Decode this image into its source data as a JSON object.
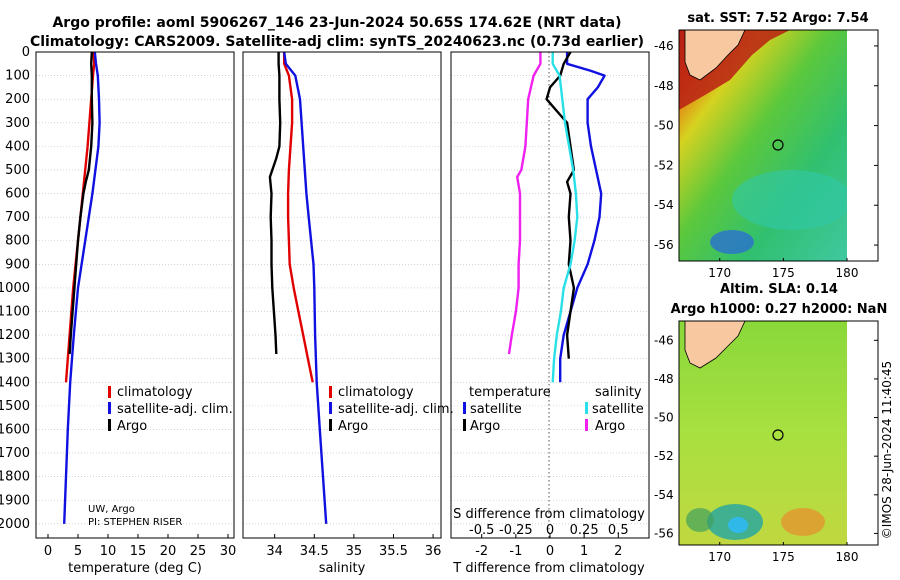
{
  "title": {
    "line1": "Argo profile: aoml 5906267_146 23-Jun-2024 50.65S 174.62E (NRT data)",
    "line2": "Climatology: CARS2009. Satellite-adj clim: synTS_20240623.nc (0.73d earlier)"
  },
  "colors": {
    "climatology": "#e00000",
    "satellite": "#1010e0",
    "argo": "#000000",
    "satellite_salt": "#28e0e8",
    "argo_salt": "#f020f0"
  },
  "depth_ticks": [
    "0",
    "100",
    "200",
    "300",
    "400",
    "500",
    "600",
    "700",
    "800",
    "900",
    "1000",
    "1100",
    "1200",
    "1300",
    "1400",
    "1500",
    "1600",
    "1700",
    "1800",
    "1900",
    "2000"
  ],
  "chart_data": [
    {
      "type": "line",
      "panel": "temperature",
      "xlabel": "temperature (deg C)",
      "ylabel": "",
      "xlim": [
        -2,
        31
      ],
      "ylim": [
        2060,
        0
      ],
      "xticks": [
        "0",
        "5",
        "10",
        "15",
        "20",
        "25",
        "30"
      ],
      "legend": [
        "climatology",
        "satellite-adj. clim.",
        "Argo"
      ],
      "note1": "UW, Argo",
      "note2": "PI: STEPHEN RISER",
      "series": [
        {
          "name": "climatology",
          "depth": [
            0,
            50,
            100,
            200,
            300,
            400,
            500,
            600,
            700,
            800,
            900,
            1000,
            1100,
            1200,
            1300,
            1400
          ],
          "values": [
            7.6,
            7.7,
            7.5,
            7.2,
            6.9,
            6.6,
            6.2,
            5.8,
            5.4,
            5.0,
            4.6,
            4.2,
            3.9,
            3.6,
            3.3,
            3.0
          ]
        },
        {
          "name": "satellite-adj. clim.",
          "depth": [
            0,
            50,
            100,
            200,
            300,
            400,
            500,
            600,
            700,
            800,
            900,
            1000,
            1200,
            1400,
            1600,
            1800,
            2000
          ],
          "values": [
            7.8,
            8.0,
            8.3,
            8.5,
            8.6,
            8.4,
            7.9,
            7.4,
            6.8,
            6.2,
            5.6,
            5.0,
            4.3,
            3.7,
            3.3,
            3.0,
            2.7
          ]
        },
        {
          "name": "Argo",
          "depth": [
            0,
            50,
            100,
            200,
            300,
            400,
            450,
            500,
            550,
            600,
            700,
            800,
            900,
            1000,
            1100,
            1200,
            1280
          ],
          "values": [
            7.3,
            7.2,
            7.3,
            7.3,
            7.4,
            7.2,
            7.0,
            6.8,
            6.3,
            5.9,
            5.4,
            5.0,
            4.7,
            4.4,
            4.1,
            3.8,
            3.6
          ]
        }
      ]
    },
    {
      "type": "line",
      "panel": "salinity",
      "xlabel": "salinity",
      "ylabel": "",
      "xlim": [
        33.6,
        36.1
      ],
      "ylim": [
        2060,
        0
      ],
      "xticks": [
        "34",
        "34.5",
        "35",
        "35.5",
        "36"
      ],
      "legend": [
        "climatology",
        "satellite-adj. clim.",
        "Argo"
      ],
      "series": [
        {
          "name": "climatology",
          "depth": [
            0,
            50,
            100,
            200,
            300,
            400,
            500,
            600,
            700,
            800,
            900,
            1000,
            1100,
            1200,
            1300,
            1400
          ],
          "values": [
            34.12,
            34.12,
            34.18,
            34.22,
            34.22,
            34.2,
            34.18,
            34.17,
            34.17,
            34.18,
            34.19,
            34.24,
            34.3,
            34.36,
            34.42,
            34.48
          ]
        },
        {
          "name": "satellite-adj. clim.",
          "depth": [
            0,
            50,
            100,
            200,
            300,
            400,
            500,
            600,
            700,
            800,
            900,
            1000,
            1200,
            1400,
            1600,
            1800,
            2000
          ],
          "values": [
            34.12,
            34.14,
            34.26,
            34.32,
            34.34,
            34.36,
            34.38,
            34.4,
            34.43,
            34.46,
            34.49,
            34.5,
            34.51,
            34.53,
            34.57,
            34.61,
            34.65
          ]
        },
        {
          "name": "Argo",
          "depth": [
            0,
            50,
            100,
            200,
            300,
            400,
            450,
            500,
            530,
            600,
            700,
            800,
            900,
            1000,
            1100,
            1200,
            1280
          ],
          "values": [
            34.05,
            34.05,
            34.06,
            34.06,
            34.07,
            34.06,
            34.02,
            33.97,
            33.94,
            33.96,
            33.95,
            33.96,
            33.96,
            33.97,
            33.99,
            34.01,
            34.02
          ]
        }
      ]
    },
    {
      "type": "line",
      "panel": "difference",
      "xlabel": "T difference from climatology",
      "xlabel_top": "S difference from climatology",
      "xlim": [
        -2.9,
        2.9
      ],
      "ylim": [
        2060,
        0
      ],
      "xticks": [
        "-2",
        "-1",
        "0",
        "1",
        "2"
      ],
      "s_ticks": [
        "-0.5",
        "-0.25",
        "0",
        "0.25",
        "0.5"
      ],
      "legend": {
        "t_header": "temperature",
        "s_header": "salinity",
        "t_sat": "satellite",
        "t_argo": "Argo",
        "s_sat": "satellite",
        "s_argo": "Argo"
      },
      "series": [
        {
          "name": "T satellite",
          "depth": [
            0,
            50,
            80,
            100,
            150,
            200,
            300,
            400,
            500,
            600,
            700,
            800,
            900,
            1000,
            1100,
            1200,
            1300,
            1400
          ],
          "values": [
            0.5,
            0.5,
            1.2,
            1.6,
            1.4,
            1.1,
            1.1,
            1.2,
            1.35,
            1.5,
            1.45,
            1.3,
            1.1,
            0.8,
            0.6,
            0.4,
            0.3,
            0.3
          ]
        },
        {
          "name": "T Argo",
          "depth": [
            0,
            50,
            100,
            150,
            200,
            250,
            300,
            400,
            500,
            550,
            600,
            700,
            800,
            900,
            1000,
            1100,
            1200,
            1300
          ],
          "values": [
            0.6,
            0.4,
            0.3,
            0.0,
            -0.1,
            0.2,
            0.5,
            0.6,
            0.7,
            0.5,
            0.6,
            0.55,
            0.6,
            0.55,
            0.7,
            0.6,
            0.5,
            0.55
          ]
        },
        {
          "name": "S satellite",
          "depth": [
            0,
            50,
            100,
            200,
            300,
            400,
            500,
            600,
            700,
            800,
            900,
            1000,
            1100,
            1200,
            1300,
            1400
          ],
          "values": [
            0.02,
            0.02,
            0.07,
            0.09,
            0.11,
            0.14,
            0.17,
            0.19,
            0.2,
            0.18,
            0.15,
            0.1,
            0.08,
            0.05,
            0.03,
            0.02
          ]
        },
        {
          "name": "S Argo",
          "depth": [
            0,
            50,
            100,
            200,
            300,
            400,
            500,
            530,
            600,
            700,
            800,
            900,
            1000,
            1100,
            1200,
            1280
          ],
          "values": [
            -0.07,
            -0.07,
            -0.12,
            -0.16,
            -0.17,
            -0.18,
            -0.21,
            -0.24,
            -0.22,
            -0.22,
            -0.22,
            -0.23,
            -0.23,
            -0.25,
            -0.28,
            -0.3
          ]
        }
      ]
    }
  ],
  "sst_map": {
    "title": "sat. SST: 7.52 Argo: 7.54",
    "xticks": [
      "170",
      "175",
      "180"
    ],
    "yticks": [
      "-46",
      "-48",
      "-50",
      "-52",
      "-54",
      "-56"
    ]
  },
  "sla_map": {
    "title1": "Altim. SLA: 0.14",
    "title2": "Argo h1000: 0.27 h2000: NaN",
    "xticks": [
      "170",
      "175",
      "180"
    ],
    "yticks": [
      "-46",
      "-48",
      "-50",
      "-52",
      "-54",
      "-56"
    ]
  },
  "credit": "©IMOS 28-Jun-2024 11:40:45"
}
